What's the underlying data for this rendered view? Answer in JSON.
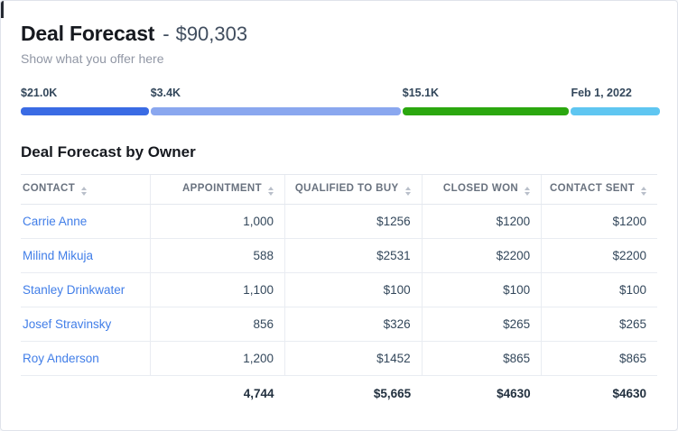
{
  "card": {
    "title": "Deal Forecast",
    "title_separator": "-",
    "title_amount": "$90,303",
    "subtitle": "Show what you offer here"
  },
  "progress": {
    "segments": [
      {
        "label": "$21.0K",
        "color": "#3a6be4",
        "width_pct": 20.1
      },
      {
        "label": "$3.4K",
        "color": "#8aa7ef",
        "width_pct": 39.3
      },
      {
        "label": "$15.1K",
        "color": "#2ba70f",
        "width_pct": 26.2
      },
      {
        "label": "Feb 1, 2022",
        "color": "#5fc6f1",
        "width_pct": 14.0
      }
    ]
  },
  "section_title": "Deal Forecast by Owner",
  "table": {
    "columns": [
      "CONTACT",
      "APPOINTMENT",
      "QUALIFIED TO BUY",
      "CLOSED WON",
      "CONTACT SENT"
    ],
    "rows": [
      {
        "contact": "Carrie Anne",
        "appointment": "1,000",
        "qualified_to_buy": "$1256",
        "closed_won": "$1200",
        "contact_sent": "$1200"
      },
      {
        "contact": "Milind Mikuja",
        "appointment": "588",
        "qualified_to_buy": "$2531",
        "closed_won": "$2200",
        "contact_sent": "$2200"
      },
      {
        "contact": "Stanley Drinkwater",
        "appointment": "1,100",
        "qualified_to_buy": "$100",
        "closed_won": "$100",
        "contact_sent": "$100"
      },
      {
        "contact": "Josef Stravinsky",
        "appointment": "856",
        "qualified_to_buy": "$326",
        "closed_won": "$265",
        "contact_sent": "$265"
      },
      {
        "contact": "Roy Anderson",
        "appointment": "1,200",
        "qualified_to_buy": "$1452",
        "closed_won": "$865",
        "contact_sent": "$865"
      }
    ],
    "totals": {
      "appointment": "4,744",
      "qualified_to_buy": "$5,665",
      "closed_won": "$4630",
      "contact_sent": "$4630"
    }
  },
  "colors": {
    "link_blue": "#417ee8",
    "bar_royal_blue": "#3a6be4",
    "bar_periwinkle": "#8aa7ef",
    "bar_green": "#2ba70f",
    "bar_cyan": "#5fc6f1",
    "header_text": "#69727f",
    "body_text": "#33475b"
  }
}
